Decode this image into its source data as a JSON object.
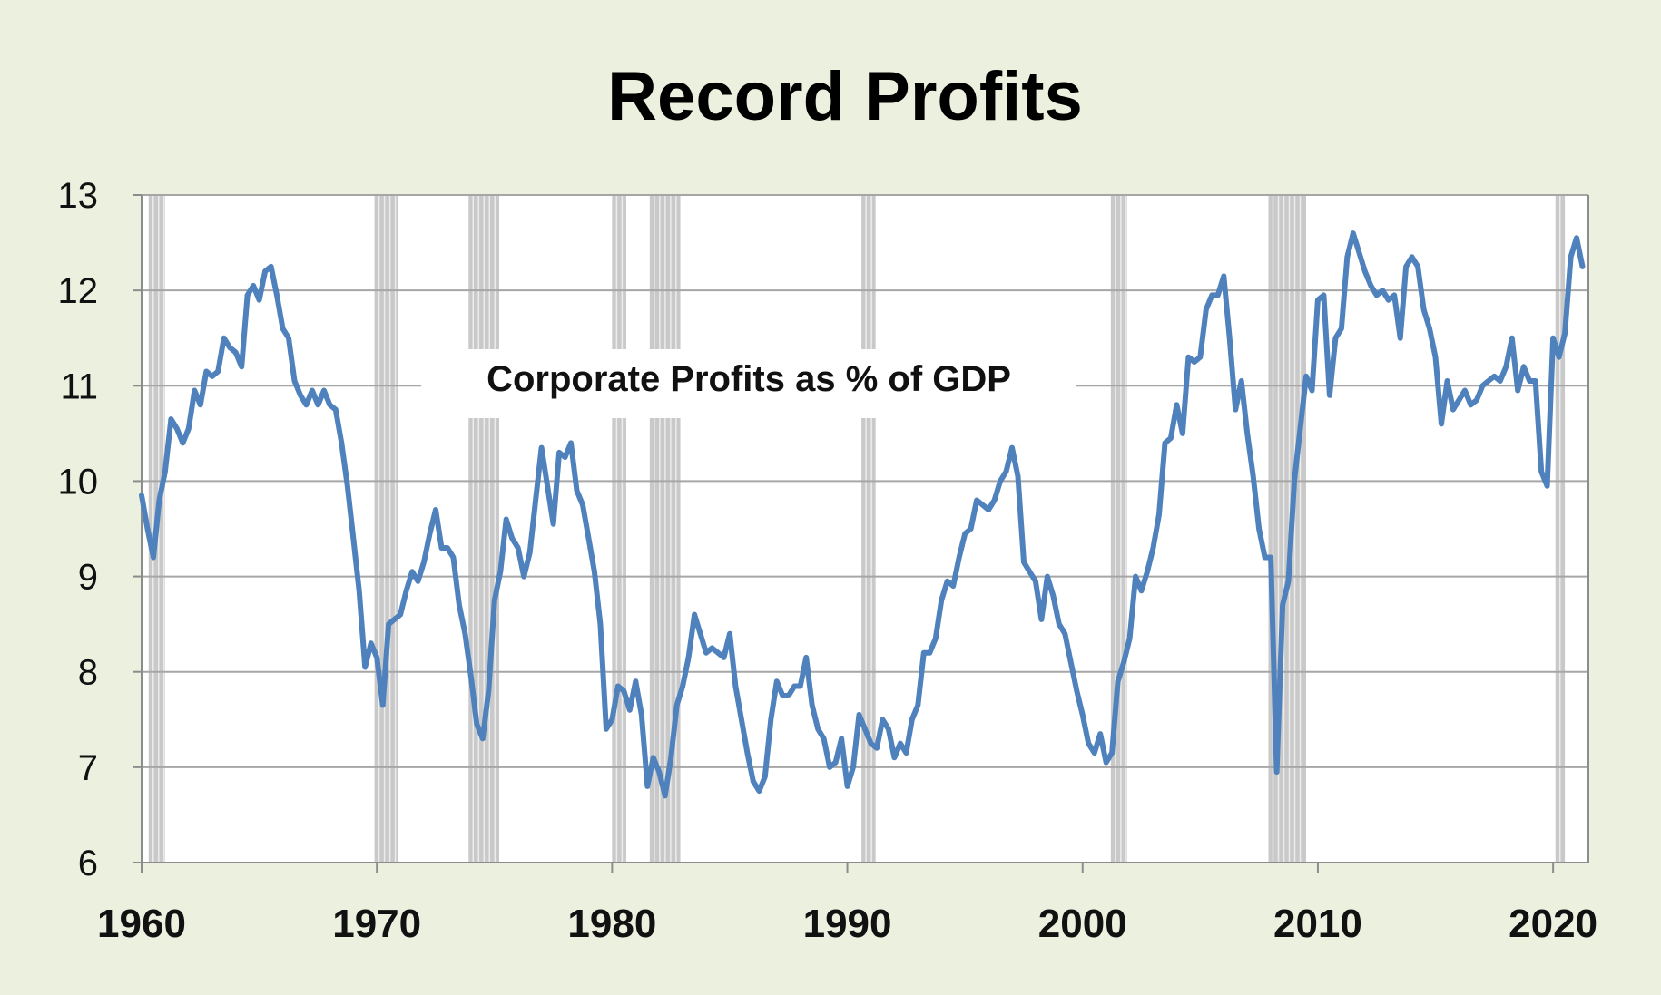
{
  "chart_data": {
    "type": "line",
    "title": "Record Profits",
    "annotation": "Corporate Profits as % of GDP",
    "xlabel": "",
    "ylabel": "",
    "xlim": [
      1960,
      2021.5
    ],
    "ylim": [
      6,
      13
    ],
    "x_ticks": [
      "1960",
      "1970",
      "1980",
      "1990",
      "2000",
      "2010",
      "2020"
    ],
    "y_ticks": [
      "13",
      "12",
      "11",
      "10",
      "9",
      "8",
      "7",
      "6"
    ],
    "grid": true,
    "legend": "none",
    "recessions": [
      [
        1960.3,
        1961.0
      ],
      [
        1969.9,
        1970.9
      ],
      [
        1973.9,
        1975.2
      ],
      [
        1980.0,
        1980.6
      ],
      [
        1981.6,
        1982.9
      ],
      [
        1990.6,
        1991.2
      ],
      [
        2001.2,
        2001.9
      ],
      [
        2007.9,
        2009.5
      ],
      [
        2020.1,
        2020.5
      ]
    ],
    "series": [
      {
        "color": "#4f81bd",
        "x": [
          1960.0,
          1960.25,
          1960.5,
          1960.75,
          1961.0,
          1961.25,
          1961.5,
          1961.75,
          1962.0,
          1962.25,
          1962.5,
          1962.75,
          1963.0,
          1963.25,
          1963.5,
          1963.75,
          1964.0,
          1964.25,
          1964.5,
          1964.75,
          1965.0,
          1965.25,
          1965.5,
          1965.75,
          1966.0,
          1966.25,
          1966.5,
          1966.75,
          1967.0,
          1967.25,
          1967.5,
          1967.75,
          1968.0,
          1968.25,
          1968.5,
          1968.75,
          1969.0,
          1969.25,
          1969.5,
          1969.75,
          1970.0,
          1970.25,
          1970.5,
          1970.75,
          1971.0,
          1971.25,
          1971.5,
          1971.75,
          1972.0,
          1972.25,
          1972.5,
          1972.75,
          1973.0,
          1973.25,
          1973.5,
          1973.75,
          1974.0,
          1974.25,
          1974.5,
          1974.75,
          1975.0,
          1975.25,
          1975.5,
          1975.75,
          1976.0,
          1976.25,
          1976.5,
          1976.75,
          1977.0,
          1977.25,
          1977.5,
          1977.75,
          1978.0,
          1978.25,
          1978.5,
          1978.75,
          1979.0,
          1979.25,
          1979.5,
          1979.75,
          1980.0,
          1980.25,
          1980.5,
          1980.75,
          1981.0,
          1981.25,
          1981.5,
          1981.75,
          1982.0,
          1982.25,
          1982.5,
          1982.75,
          1983.0,
          1983.25,
          1983.5,
          1983.75,
          1984.0,
          1984.25,
          1984.5,
          1984.75,
          1985.0,
          1985.25,
          1985.5,
          1985.75,
          1986.0,
          1986.25,
          1986.5,
          1986.75,
          1987.0,
          1987.25,
          1987.5,
          1987.75,
          1988.0,
          1988.25,
          1988.5,
          1988.75,
          1989.0,
          1989.25,
          1989.5,
          1989.75,
          1990.0,
          1990.25,
          1990.5,
          1990.75,
          1991.0,
          1991.25,
          1991.5,
          1991.75,
          1992.0,
          1992.25,
          1992.5,
          1992.75,
          1993.0,
          1993.25,
          1993.5,
          1993.75,
          1994.0,
          1994.25,
          1994.5,
          1994.75,
          1995.0,
          1995.25,
          1995.5,
          1995.75,
          1996.0,
          1996.25,
          1996.5,
          1996.75,
          1997.0,
          1997.25,
          1997.5,
          1997.75,
          1998.0,
          1998.25,
          1998.5,
          1998.75,
          1999.0,
          1999.25,
          1999.5,
          1999.75,
          2000.0,
          2000.25,
          2000.5,
          2000.75,
          2001.0,
          2001.25,
          2001.5,
          2001.75,
          2002.0,
          2002.25,
          2002.5,
          2002.75,
          2003.0,
          2003.25,
          2003.5,
          2003.75,
          2004.0,
          2004.25,
          2004.5,
          2004.75,
          2005.0,
          2005.25,
          2005.5,
          2005.75,
          2006.0,
          2006.25,
          2006.5,
          2006.75,
          2007.0,
          2007.25,
          2007.5,
          2007.75,
          2008.0,
          2008.25,
          2008.5,
          2008.75,
          2009.0,
          2009.25,
          2009.5,
          2009.75,
          2010.0,
          2010.25,
          2010.5,
          2010.75,
          2011.0,
          2011.25,
          2011.5,
          2011.75,
          2012.0,
          2012.25,
          2012.5,
          2012.75,
          2013.0,
          2013.25,
          2013.5,
          2013.75,
          2014.0,
          2014.25,
          2014.5,
          2014.75,
          2015.0,
          2015.25,
          2015.5,
          2015.75,
          2016.0,
          2016.25,
          2016.5,
          2016.75,
          2017.0,
          2017.25,
          2017.5,
          2017.75,
          2018.0,
          2018.25,
          2018.5,
          2018.75,
          2019.0,
          2019.25,
          2019.5,
          2019.75,
          2020.0,
          2020.25,
          2020.5,
          2020.75,
          2021.0,
          2021.25
        ],
        "values": [
          9.85,
          9.5,
          9.2,
          9.8,
          10.1,
          10.65,
          10.55,
          10.4,
          10.55,
          10.95,
          10.8,
          11.15,
          11.1,
          11.15,
          11.5,
          11.4,
          11.35,
          11.2,
          11.95,
          12.05,
          11.9,
          12.2,
          12.25,
          11.95,
          11.6,
          11.5,
          11.05,
          10.9,
          10.8,
          10.95,
          10.8,
          10.95,
          10.8,
          10.75,
          10.4,
          9.95,
          9.4,
          8.85,
          8.05,
          8.3,
          8.15,
          7.65,
          8.5,
          8.55,
          8.6,
          8.85,
          9.05,
          8.95,
          9.15,
          9.45,
          9.7,
          9.3,
          9.3,
          9.2,
          8.7,
          8.4,
          7.95,
          7.45,
          7.3,
          7.8,
          8.75,
          9.05,
          9.6,
          9.4,
          9.3,
          9.0,
          9.25,
          9.8,
          10.35,
          9.95,
          9.55,
          10.3,
          10.25,
          10.4,
          9.9,
          9.75,
          9.4,
          9.05,
          8.5,
          7.4,
          7.5,
          7.85,
          7.8,
          7.6,
          7.9,
          7.55,
          6.8,
          7.1,
          6.95,
          6.7,
          7.1,
          7.65,
          7.85,
          8.15,
          8.6,
          8.4,
          8.2,
          8.25,
          8.2,
          8.15,
          8.4,
          7.85,
          7.5,
          7.15,
          6.85,
          6.75,
          6.9,
          7.5,
          7.9,
          7.75,
          7.75,
          7.85,
          7.85,
          8.15,
          7.65,
          7.4,
          7.3,
          7.0,
          7.05,
          7.3,
          6.8,
          7.0,
          7.55,
          7.4,
          7.25,
          7.2,
          7.5,
          7.4,
          7.1,
          7.25,
          7.15,
          7.5,
          7.65,
          8.2,
          8.2,
          8.35,
          8.75,
          8.95,
          8.9,
          9.2,
          9.45,
          9.5,
          9.8,
          9.75,
          9.7,
          9.8,
          10.0,
          10.1,
          10.35,
          10.05,
          9.15,
          9.05,
          8.95,
          8.55,
          9.0,
          8.8,
          8.5,
          8.4,
          8.1,
          7.8,
          7.55,
          7.25,
          7.15,
          7.35,
          7.05,
          7.15,
          7.9,
          8.1,
          8.35,
          9.0,
          8.85,
          9.05,
          9.3,
          9.65,
          10.4,
          10.45,
          10.8,
          10.5,
          11.3,
          11.25,
          11.3,
          11.8,
          11.95,
          11.95,
          12.15,
          11.5,
          10.75,
          11.05,
          10.5,
          10.05,
          9.5,
          9.2,
          9.2,
          6.95,
          8.7,
          8.95,
          10.0,
          10.55,
          11.1,
          10.95,
          11.9,
          11.95,
          10.9,
          11.5,
          11.6,
          12.35,
          12.6,
          12.4,
          12.2,
          12.05,
          11.95,
          12.0,
          11.9,
          11.95,
          11.5,
          12.25,
          12.35,
          12.25,
          11.8,
          11.6,
          11.3,
          10.6,
          11.05,
          10.75,
          10.85,
          10.95,
          10.8,
          10.85,
          11.0,
          11.05,
          11.1,
          11.05,
          11.2,
          11.5,
          10.95,
          11.2,
          11.05,
          11.05,
          10.1,
          9.95,
          11.5,
          11.3,
          11.55,
          12.35,
          12.55,
          12.25
        ]
      }
    ]
  }
}
